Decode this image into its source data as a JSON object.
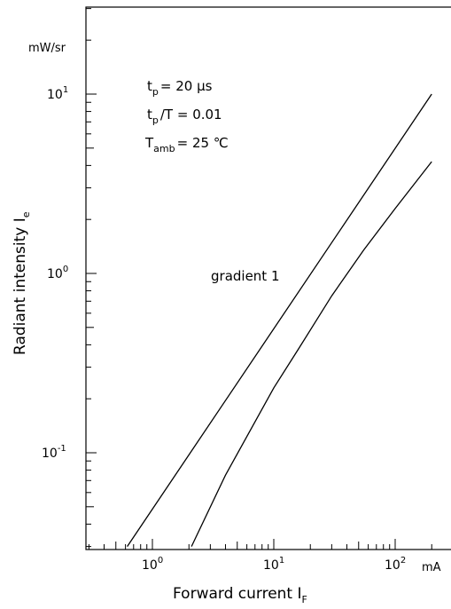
{
  "chart_data": {
    "type": "line",
    "x_scale": "log",
    "y_scale": "log",
    "xlim": [
      0.3,
      200
    ],
    "ylim": [
      0.03,
      50
    ],
    "xlabel": "Forward current I",
    "xlabel_sub": "F",
    "ylabel": "Radiant intensity I",
    "ylabel_sub": "e",
    "x_unit": "mA",
    "y_unit": "mW/sr",
    "x_ticks": [
      {
        "base": "10",
        "exp": "0",
        "value": 1
      },
      {
        "base": "10",
        "exp": "1",
        "value": 10
      },
      {
        "base": "10",
        "exp": "2",
        "value": 100
      }
    ],
    "y_ticks": [
      {
        "base": "10",
        "exp": "-1",
        "value": 0.1
      },
      {
        "base": "10",
        "exp": "0",
        "value": 1
      },
      {
        "base": "10",
        "exp": "1",
        "value": 10
      }
    ],
    "annotations": {
      "tp_main": "t",
      "tp_sub": "p",
      "tp_value": "= 20 μs",
      "duty_main": "t",
      "duty_sub": "p",
      "duty_value": "/T = 0.01",
      "tamb_main": "T",
      "tamb_sub": "amb",
      "tamb_value": "= 25 ℃",
      "gradient": "gradient  1"
    },
    "series": [
      {
        "values": [
          [
            0.62,
            0.03
          ],
          [
            200,
            10
          ]
        ]
      },
      {
        "values": [
          [
            2.1,
            0.03
          ],
          [
            4,
            0.075
          ],
          [
            10,
            0.23
          ],
          [
            16,
            0.38
          ],
          [
            30,
            0.75
          ],
          [
            55,
            1.35
          ],
          [
            100,
            2.3
          ],
          [
            200,
            4.2
          ]
        ]
      }
    ],
    "grid": false
  }
}
